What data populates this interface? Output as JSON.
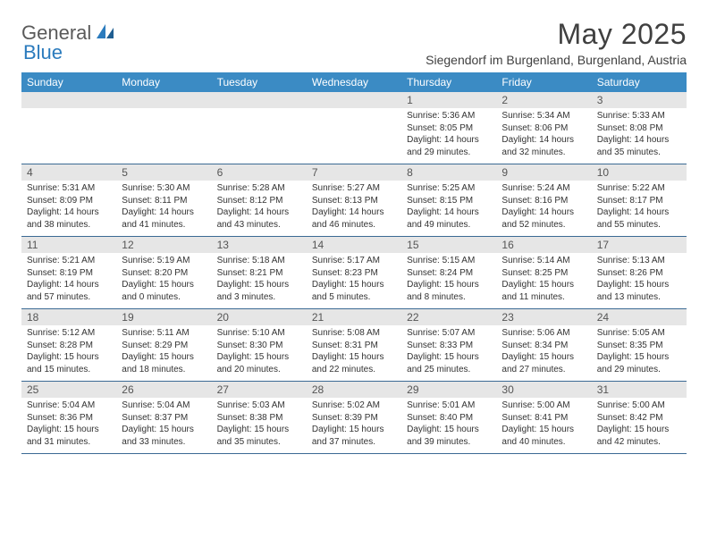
{
  "logo": {
    "part1": "General",
    "part2": "Blue"
  },
  "title": "May 2025",
  "location": "Siegendorf im Burgenland, Burgenland, Austria",
  "colors": {
    "header_bg": "#3b8bc4",
    "daynum_bg": "#e6e6e6",
    "row_border": "#3b6a94",
    "logo_gray": "#5a5a5a",
    "logo_blue": "#2b7bbd",
    "text": "#333333"
  },
  "weekdays": [
    "Sunday",
    "Monday",
    "Tuesday",
    "Wednesday",
    "Thursday",
    "Friday",
    "Saturday"
  ],
  "weeks": [
    {
      "nums": [
        "",
        "",
        "",
        "",
        "1",
        "2",
        "3"
      ],
      "cells": [
        {
          "sunrise": "",
          "sunset": "",
          "daylight1": "",
          "daylight2": ""
        },
        {
          "sunrise": "",
          "sunset": "",
          "daylight1": "",
          "daylight2": ""
        },
        {
          "sunrise": "",
          "sunset": "",
          "daylight1": "",
          "daylight2": ""
        },
        {
          "sunrise": "",
          "sunset": "",
          "daylight1": "",
          "daylight2": ""
        },
        {
          "sunrise": "Sunrise: 5:36 AM",
          "sunset": "Sunset: 8:05 PM",
          "daylight1": "Daylight: 14 hours",
          "daylight2": "and 29 minutes."
        },
        {
          "sunrise": "Sunrise: 5:34 AM",
          "sunset": "Sunset: 8:06 PM",
          "daylight1": "Daylight: 14 hours",
          "daylight2": "and 32 minutes."
        },
        {
          "sunrise": "Sunrise: 5:33 AM",
          "sunset": "Sunset: 8:08 PM",
          "daylight1": "Daylight: 14 hours",
          "daylight2": "and 35 minutes."
        }
      ]
    },
    {
      "nums": [
        "4",
        "5",
        "6",
        "7",
        "8",
        "9",
        "10"
      ],
      "cells": [
        {
          "sunrise": "Sunrise: 5:31 AM",
          "sunset": "Sunset: 8:09 PM",
          "daylight1": "Daylight: 14 hours",
          "daylight2": "and 38 minutes."
        },
        {
          "sunrise": "Sunrise: 5:30 AM",
          "sunset": "Sunset: 8:11 PM",
          "daylight1": "Daylight: 14 hours",
          "daylight2": "and 41 minutes."
        },
        {
          "sunrise": "Sunrise: 5:28 AM",
          "sunset": "Sunset: 8:12 PM",
          "daylight1": "Daylight: 14 hours",
          "daylight2": "and 43 minutes."
        },
        {
          "sunrise": "Sunrise: 5:27 AM",
          "sunset": "Sunset: 8:13 PM",
          "daylight1": "Daylight: 14 hours",
          "daylight2": "and 46 minutes."
        },
        {
          "sunrise": "Sunrise: 5:25 AM",
          "sunset": "Sunset: 8:15 PM",
          "daylight1": "Daylight: 14 hours",
          "daylight2": "and 49 minutes."
        },
        {
          "sunrise": "Sunrise: 5:24 AM",
          "sunset": "Sunset: 8:16 PM",
          "daylight1": "Daylight: 14 hours",
          "daylight2": "and 52 minutes."
        },
        {
          "sunrise": "Sunrise: 5:22 AM",
          "sunset": "Sunset: 8:17 PM",
          "daylight1": "Daylight: 14 hours",
          "daylight2": "and 55 minutes."
        }
      ]
    },
    {
      "nums": [
        "11",
        "12",
        "13",
        "14",
        "15",
        "16",
        "17"
      ],
      "cells": [
        {
          "sunrise": "Sunrise: 5:21 AM",
          "sunset": "Sunset: 8:19 PM",
          "daylight1": "Daylight: 14 hours",
          "daylight2": "and 57 minutes."
        },
        {
          "sunrise": "Sunrise: 5:19 AM",
          "sunset": "Sunset: 8:20 PM",
          "daylight1": "Daylight: 15 hours",
          "daylight2": "and 0 minutes."
        },
        {
          "sunrise": "Sunrise: 5:18 AM",
          "sunset": "Sunset: 8:21 PM",
          "daylight1": "Daylight: 15 hours",
          "daylight2": "and 3 minutes."
        },
        {
          "sunrise": "Sunrise: 5:17 AM",
          "sunset": "Sunset: 8:23 PM",
          "daylight1": "Daylight: 15 hours",
          "daylight2": "and 5 minutes."
        },
        {
          "sunrise": "Sunrise: 5:15 AM",
          "sunset": "Sunset: 8:24 PM",
          "daylight1": "Daylight: 15 hours",
          "daylight2": "and 8 minutes."
        },
        {
          "sunrise": "Sunrise: 5:14 AM",
          "sunset": "Sunset: 8:25 PM",
          "daylight1": "Daylight: 15 hours",
          "daylight2": "and 11 minutes."
        },
        {
          "sunrise": "Sunrise: 5:13 AM",
          "sunset": "Sunset: 8:26 PM",
          "daylight1": "Daylight: 15 hours",
          "daylight2": "and 13 minutes."
        }
      ]
    },
    {
      "nums": [
        "18",
        "19",
        "20",
        "21",
        "22",
        "23",
        "24"
      ],
      "cells": [
        {
          "sunrise": "Sunrise: 5:12 AM",
          "sunset": "Sunset: 8:28 PM",
          "daylight1": "Daylight: 15 hours",
          "daylight2": "and 15 minutes."
        },
        {
          "sunrise": "Sunrise: 5:11 AM",
          "sunset": "Sunset: 8:29 PM",
          "daylight1": "Daylight: 15 hours",
          "daylight2": "and 18 minutes."
        },
        {
          "sunrise": "Sunrise: 5:10 AM",
          "sunset": "Sunset: 8:30 PM",
          "daylight1": "Daylight: 15 hours",
          "daylight2": "and 20 minutes."
        },
        {
          "sunrise": "Sunrise: 5:08 AM",
          "sunset": "Sunset: 8:31 PM",
          "daylight1": "Daylight: 15 hours",
          "daylight2": "and 22 minutes."
        },
        {
          "sunrise": "Sunrise: 5:07 AM",
          "sunset": "Sunset: 8:33 PM",
          "daylight1": "Daylight: 15 hours",
          "daylight2": "and 25 minutes."
        },
        {
          "sunrise": "Sunrise: 5:06 AM",
          "sunset": "Sunset: 8:34 PM",
          "daylight1": "Daylight: 15 hours",
          "daylight2": "and 27 minutes."
        },
        {
          "sunrise": "Sunrise: 5:05 AM",
          "sunset": "Sunset: 8:35 PM",
          "daylight1": "Daylight: 15 hours",
          "daylight2": "and 29 minutes."
        }
      ]
    },
    {
      "nums": [
        "25",
        "26",
        "27",
        "28",
        "29",
        "30",
        "31"
      ],
      "cells": [
        {
          "sunrise": "Sunrise: 5:04 AM",
          "sunset": "Sunset: 8:36 PM",
          "daylight1": "Daylight: 15 hours",
          "daylight2": "and 31 minutes."
        },
        {
          "sunrise": "Sunrise: 5:04 AM",
          "sunset": "Sunset: 8:37 PM",
          "daylight1": "Daylight: 15 hours",
          "daylight2": "and 33 minutes."
        },
        {
          "sunrise": "Sunrise: 5:03 AM",
          "sunset": "Sunset: 8:38 PM",
          "daylight1": "Daylight: 15 hours",
          "daylight2": "and 35 minutes."
        },
        {
          "sunrise": "Sunrise: 5:02 AM",
          "sunset": "Sunset: 8:39 PM",
          "daylight1": "Daylight: 15 hours",
          "daylight2": "and 37 minutes."
        },
        {
          "sunrise": "Sunrise: 5:01 AM",
          "sunset": "Sunset: 8:40 PM",
          "daylight1": "Daylight: 15 hours",
          "daylight2": "and 39 minutes."
        },
        {
          "sunrise": "Sunrise: 5:00 AM",
          "sunset": "Sunset: 8:41 PM",
          "daylight1": "Daylight: 15 hours",
          "daylight2": "and 40 minutes."
        },
        {
          "sunrise": "Sunrise: 5:00 AM",
          "sunset": "Sunset: 8:42 PM",
          "daylight1": "Daylight: 15 hours",
          "daylight2": "and 42 minutes."
        }
      ]
    }
  ]
}
